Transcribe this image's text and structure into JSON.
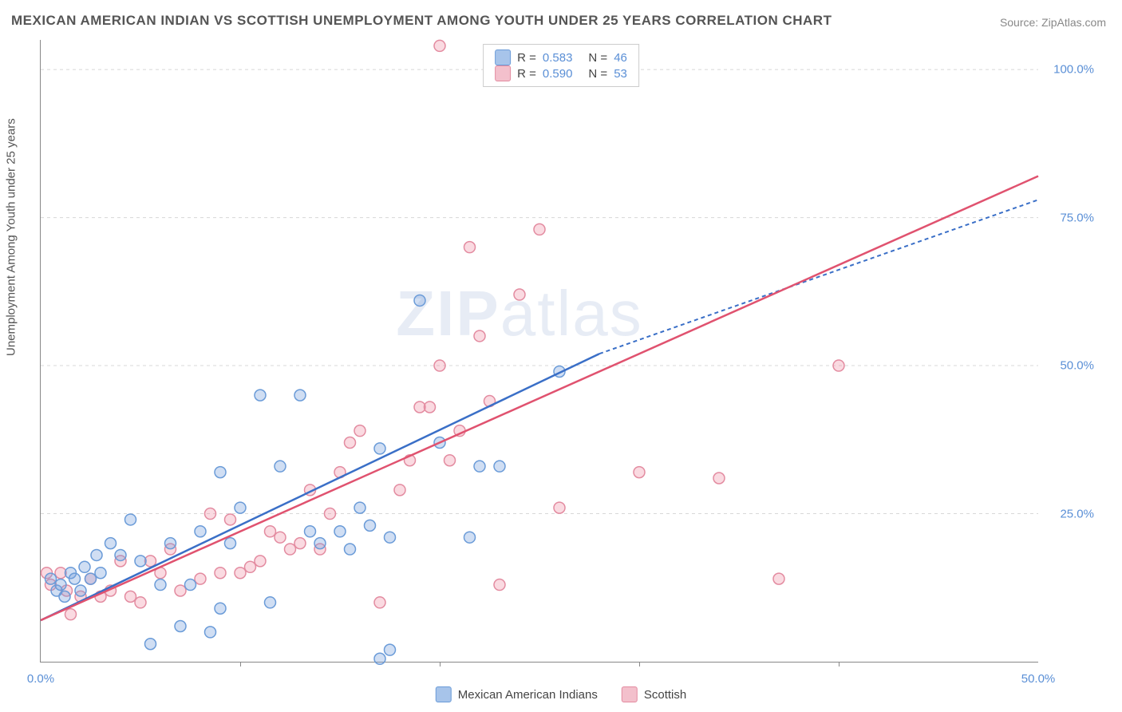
{
  "chart": {
    "type": "scatter",
    "title": "MEXICAN AMERICAN INDIAN VS SCOTTISH UNEMPLOYMENT AMONG YOUTH UNDER 25 YEARS CORRELATION CHART",
    "source": "Source: ZipAtlas.com",
    "y_axis_title": "Unemployment Among Youth under 25 years",
    "watermark": "ZIPatlas",
    "background_color": "#ffffff",
    "grid_color": "#d8d8d8",
    "axis_color": "#888888",
    "label_color": "#5a8fd6",
    "xlim": [
      0,
      50
    ],
    "ylim": [
      0,
      105
    ],
    "y_ticks": [
      25,
      50,
      75,
      100
    ],
    "x_ticks": [
      0,
      50
    ],
    "y_tick_labels": [
      "25.0%",
      "50.0%",
      "75.0%",
      "100.0%"
    ],
    "x_tick_labels": [
      "0.0%",
      "50.0%"
    ],
    "x_grid_ticks": [
      10,
      20,
      30,
      40
    ],
    "marker_radius": 7,
    "marker_stroke_width": 1.5,
    "series": [
      {
        "name": "Mexican American Indians",
        "color_fill": "rgba(120,160,220,0.35)",
        "color_stroke": "#6a9bd8",
        "line_color": "#3a6fc7",
        "line_dash": "",
        "line_extrapolate_dash": "5,4",
        "R": "0.583",
        "N": "46",
        "trend": {
          "x1": 0,
          "y1": 7,
          "x2": 28,
          "y2": 52,
          "x2_ext": 50,
          "y2_ext": 78
        },
        "points": [
          [
            0.5,
            14
          ],
          [
            0.8,
            12
          ],
          [
            1,
            13
          ],
          [
            1.2,
            11
          ],
          [
            1.5,
            15
          ],
          [
            1.7,
            14
          ],
          [
            2,
            12
          ],
          [
            2.2,
            16
          ],
          [
            2.5,
            14
          ],
          [
            2.8,
            18
          ],
          [
            3,
            15
          ],
          [
            3.5,
            20
          ],
          [
            4,
            18
          ],
          [
            4.5,
            24
          ],
          [
            5,
            17
          ],
          [
            5.5,
            3
          ],
          [
            6,
            13
          ],
          [
            6.5,
            20
          ],
          [
            7,
            6
          ],
          [
            7.5,
            13
          ],
          [
            8,
            22
          ],
          [
            8.5,
            5
          ],
          [
            9,
            32
          ],
          [
            9,
            9
          ],
          [
            9.5,
            20
          ],
          [
            10,
            26
          ],
          [
            11,
            45
          ],
          [
            11.5,
            10
          ],
          [
            12,
            33
          ],
          [
            13,
            45
          ],
          [
            13.5,
            22
          ],
          [
            14,
            20
          ],
          [
            15,
            22
          ],
          [
            15.5,
            19
          ],
          [
            16,
            26
          ],
          [
            16.5,
            23
          ],
          [
            17,
            36
          ],
          [
            17.5,
            21
          ],
          [
            17.5,
            2
          ],
          [
            19,
            61
          ],
          [
            20,
            37
          ],
          [
            21.5,
            21
          ],
          [
            22,
            33
          ],
          [
            23,
            33
          ],
          [
            26,
            49
          ],
          [
            17,
            0.5
          ]
        ]
      },
      {
        "name": "Scottish",
        "color_fill": "rgba(240,150,170,0.35)",
        "color_stroke": "#e38ba0",
        "line_color": "#e0526f",
        "line_dash": "",
        "line_extrapolate_dash": "",
        "R": "0.590",
        "N": "53",
        "trend": {
          "x1": 0,
          "y1": 7,
          "x2": 50,
          "y2": 82,
          "x2_ext": 50,
          "y2_ext": 82
        },
        "points": [
          [
            0.3,
            15
          ],
          [
            0.5,
            13
          ],
          [
            1,
            15
          ],
          [
            1.3,
            12
          ],
          [
            1.5,
            8
          ],
          [
            2,
            11
          ],
          [
            2.5,
            14
          ],
          [
            3,
            11
          ],
          [
            3.5,
            12
          ],
          [
            4,
            17
          ],
          [
            4.5,
            11
          ],
          [
            5,
            10
          ],
          [
            5.5,
            17
          ],
          [
            6,
            15
          ],
          [
            6.5,
            19
          ],
          [
            7,
            12
          ],
          [
            8,
            14
          ],
          [
            8.5,
            25
          ],
          [
            9,
            15
          ],
          [
            9.5,
            24
          ],
          [
            10,
            15
          ],
          [
            10.5,
            16
          ],
          [
            11,
            17
          ],
          [
            11.5,
            22
          ],
          [
            12,
            21
          ],
          [
            12.5,
            19
          ],
          [
            13,
            20
          ],
          [
            13.5,
            29
          ],
          [
            14,
            19
          ],
          [
            14.5,
            25
          ],
          [
            15,
            32
          ],
          [
            15.5,
            37
          ],
          [
            16,
            39
          ],
          [
            17,
            10
          ],
          [
            18,
            29
          ],
          [
            18.5,
            34
          ],
          [
            19,
            43
          ],
          [
            19.5,
            43
          ],
          [
            20,
            50
          ],
          [
            20.5,
            34
          ],
          [
            21,
            39
          ],
          [
            21.5,
            70
          ],
          [
            22,
            55
          ],
          [
            22.5,
            44
          ],
          [
            23,
            13
          ],
          [
            24,
            62
          ],
          [
            25,
            73
          ],
          [
            26,
            26
          ],
          [
            30,
            32
          ],
          [
            34,
            31
          ],
          [
            37,
            14
          ],
          [
            40,
            50
          ],
          [
            20,
            104
          ]
        ]
      }
    ],
    "legend_bottom": [
      {
        "label": "Mexican American Indians",
        "fill": "#a7c4ea",
        "stroke": "#6a9bd8"
      },
      {
        "label": "Scottish",
        "fill": "#f3c0cc",
        "stroke": "#e38ba0"
      }
    ]
  }
}
